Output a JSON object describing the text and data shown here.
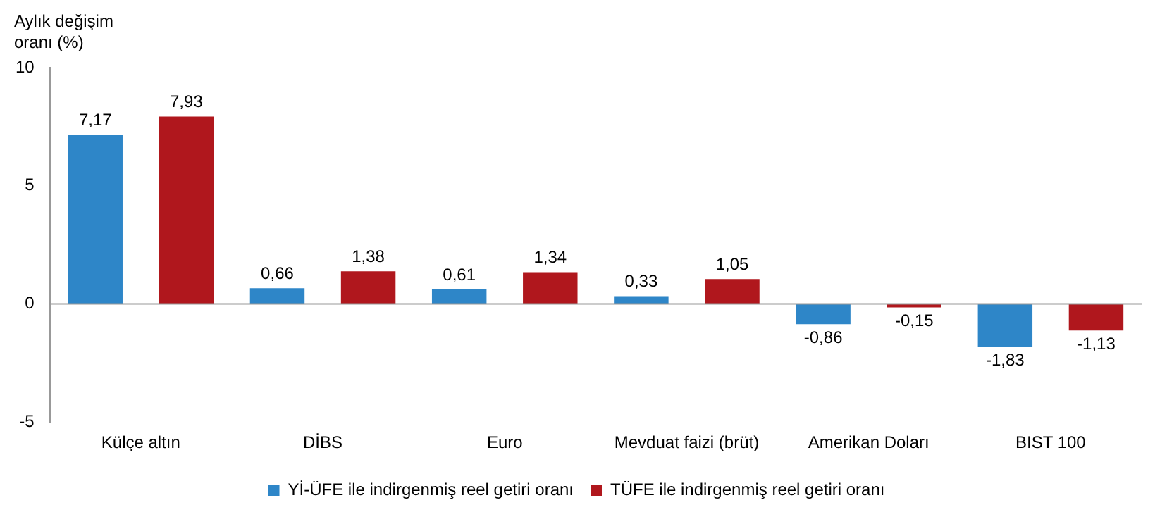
{
  "chart_data": {
    "type": "bar",
    "ylabel": "Aylık değişim oranı (%)",
    "categories": [
      "Külçe altın",
      "DİBS",
      "Euro",
      "Mevduat faizi (brüt)",
      "Amerikan Doları",
      "BIST 100"
    ],
    "series": [
      {
        "name": "Yİ-ÜFE ile indirgenmiş reel getiri oranı",
        "color": "#2e86c8",
        "values": [
          7.17,
          0.66,
          0.61,
          0.33,
          -0.86,
          -1.83
        ],
        "value_labels": [
          "7,17",
          "0,66",
          "0,61",
          "0,33",
          "-0,86",
          "-1,83"
        ]
      },
      {
        "name": "TÜFE ile indirgenmiş reel getiri oranı",
        "color": "#b0171d",
        "values": [
          7.93,
          1.38,
          1.34,
          1.05,
          -0.15,
          -1.13
        ],
        "value_labels": [
          "7,93",
          "1,38",
          "1,34",
          "1,05",
          "-0,15",
          "-1,13"
        ]
      }
    ],
    "ylim": [
      -5,
      10
    ],
    "yticks": [
      -5,
      0,
      5,
      10
    ],
    "legend": "bottom"
  }
}
